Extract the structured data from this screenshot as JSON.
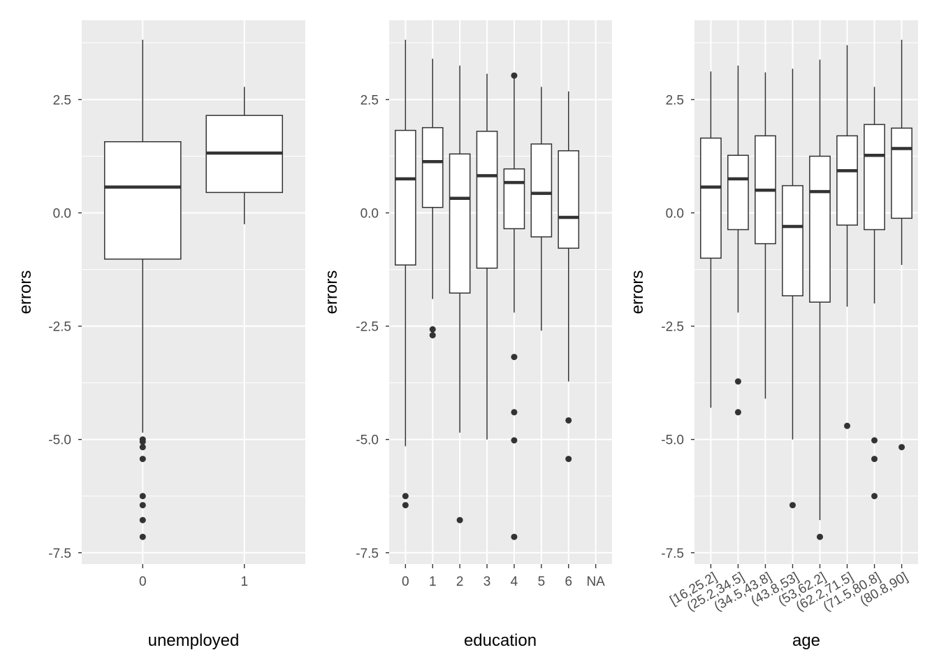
{
  "chart_data": [
    {
      "type": "box",
      "xlabel": "unemployed",
      "ylabel": "errors",
      "ylim": [
        -7.75,
        4.25
      ],
      "yticks": [
        2.5,
        0.0,
        -2.5,
        -5.0,
        -7.5
      ],
      "ytick_labels": [
        "2.5",
        "0.0",
        "-2.5",
        "-5.0",
        "-7.5"
      ],
      "grid": true,
      "categories": [
        "0",
        "1"
      ],
      "boxes": [
        {
          "category": "0",
          "min": -4.85,
          "q1": -1.02,
          "median": 0.57,
          "q3": 1.57,
          "max": 3.82,
          "outliers": [
            -5.0,
            -5.05,
            -5.17,
            -5.43,
            -6.25,
            -6.45,
            -6.78,
            -7.15
          ]
        },
        {
          "category": "1",
          "min": -0.25,
          "q1": 0.45,
          "median": 1.32,
          "q3": 2.15,
          "max": 2.78,
          "outliers": []
        }
      ]
    },
    {
      "type": "box",
      "xlabel": "education",
      "ylabel": "errors",
      "ylim": [
        -7.75,
        4.25
      ],
      "yticks": [
        2.5,
        0.0,
        -2.5,
        -5.0,
        -7.5
      ],
      "ytick_labels": [
        "2.5",
        "0.0",
        "-2.5",
        "-5.0",
        "-7.5"
      ],
      "grid": true,
      "categories": [
        "0",
        "1",
        "2",
        "3",
        "4",
        "5",
        "6",
        "NA"
      ],
      "boxes": [
        {
          "category": "0",
          "min": -5.15,
          "q1": -1.15,
          "median": 0.75,
          "q3": 1.82,
          "max": 3.82,
          "outliers": [
            -6.25,
            -6.45
          ]
        },
        {
          "category": "1",
          "min": -1.9,
          "q1": 0.12,
          "median": 1.13,
          "q3": 1.88,
          "max": 3.4,
          "outliers": [
            -2.57,
            -2.7
          ]
        },
        {
          "category": "2",
          "min": -4.85,
          "q1": -1.77,
          "median": 0.32,
          "q3": 1.3,
          "max": 3.25,
          "outliers": [
            -6.78
          ]
        },
        {
          "category": "3",
          "min": -5.0,
          "q1": -1.22,
          "median": 0.82,
          "q3": 1.8,
          "max": 3.07,
          "outliers": []
        },
        {
          "category": "4",
          "min": -2.2,
          "q1": -0.35,
          "median": 0.67,
          "q3": 0.97,
          "max": 2.97,
          "outliers": [
            3.03,
            -3.18,
            -4.4,
            -5.02,
            -7.15
          ]
        },
        {
          "category": "5",
          "min": -2.6,
          "q1": -0.53,
          "median": 0.43,
          "q3": 1.52,
          "max": 2.78,
          "outliers": []
        },
        {
          "category": "6",
          "min": -3.72,
          "q1": -0.78,
          "median": -0.1,
          "q3": 1.37,
          "max": 2.68,
          "outliers": [
            -4.58,
            -5.43
          ]
        },
        {
          "category": "NA",
          "min": null,
          "q1": null,
          "median": null,
          "q3": null,
          "max": null,
          "outliers": []
        }
      ]
    },
    {
      "type": "box",
      "xlabel": "age",
      "ylabel": "errors",
      "ylim": [
        -7.75,
        4.25
      ],
      "yticks": [
        2.5,
        0.0,
        -2.5,
        -5.0,
        -7.5
      ],
      "ytick_labels": [
        "2.5",
        "0.0",
        "-2.5",
        "-5.0",
        "-7.5"
      ],
      "grid": true,
      "categories": [
        "[16,25.2]",
        "(25.2,34.5]",
        "(34.5,43.8]",
        "(43.8,53]",
        "(53,62.2]",
        "(62.2,71.5]",
        "(71.5,80.8]",
        "(80.8,90]"
      ],
      "boxes": [
        {
          "category": "[16,25.2]",
          "min": -4.3,
          "q1": -1.0,
          "median": 0.57,
          "q3": 1.65,
          "max": 3.12,
          "outliers": []
        },
        {
          "category": "(25.2,34.5]",
          "min": -2.2,
          "q1": -0.37,
          "median": 0.75,
          "q3": 1.27,
          "max": 3.25,
          "outliers": [
            -3.72,
            -4.4
          ]
        },
        {
          "category": "(34.5,43.8]",
          "min": -4.1,
          "q1": -0.68,
          "median": 0.5,
          "q3": 1.7,
          "max": 3.1,
          "outliers": []
        },
        {
          "category": "(43.8,53]",
          "min": -5.0,
          "q1": -1.83,
          "median": -0.3,
          "q3": 0.6,
          "max": 3.18,
          "outliers": [
            -6.45
          ]
        },
        {
          "category": "(53,62.2]",
          "min": -6.78,
          "q1": -1.97,
          "median": 0.47,
          "q3": 1.25,
          "max": 3.38,
          "outliers": [
            -7.15
          ]
        },
        {
          "category": "(62.2,71.5]",
          "min": -2.07,
          "q1": -0.27,
          "median": 0.93,
          "q3": 1.7,
          "max": 3.7,
          "outliers": [
            -4.7
          ]
        },
        {
          "category": "(71.5,80.8]",
          "min": -2.0,
          "q1": -0.37,
          "median": 1.27,
          "q3": 1.95,
          "max": 2.78,
          "outliers": [
            -5.02,
            -5.43,
            -6.25
          ]
        },
        {
          "category": "(80.8,90]",
          "min": -1.15,
          "q1": -0.12,
          "median": 1.42,
          "q3": 1.87,
          "max": 3.82,
          "outliers": [
            -5.17
          ]
        }
      ]
    }
  ],
  "colors": {
    "panel_background": "#ebebeb",
    "grid_major": "#ffffff",
    "box_fill": "#ffffff",
    "box_line": "#333333",
    "tick_text": "#4d4d4d",
    "axis_title": "#000000"
  }
}
